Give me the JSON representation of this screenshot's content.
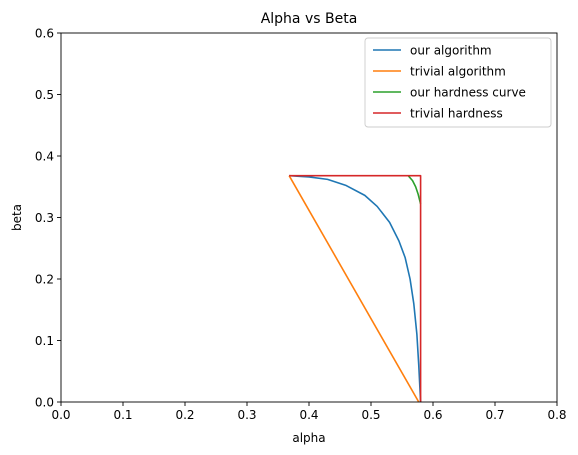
{
  "chart_data": {
    "type": "line",
    "title": "Alpha vs Beta",
    "xlabel": "alpha",
    "ylabel": "beta",
    "xlim": [
      0,
      0.8
    ],
    "ylim": [
      0,
      0.6
    ],
    "x_ticks": [
      "0.0",
      "0.1",
      "0.2",
      "0.3",
      "0.4",
      "0.5",
      "0.6",
      "0.7",
      "0.8"
    ],
    "y_ticks": [
      "0.0",
      "0.1",
      "0.2",
      "0.3",
      "0.4",
      "0.5",
      "0.6"
    ],
    "grid": false,
    "legend_position": "top-right",
    "series": [
      {
        "name": "our algorithm",
        "color": "#1f77b4",
        "points": [
          [
            0.368,
            0.368
          ],
          [
            0.4,
            0.366
          ],
          [
            0.43,
            0.362
          ],
          [
            0.46,
            0.352
          ],
          [
            0.49,
            0.336
          ],
          [
            0.51,
            0.318
          ],
          [
            0.53,
            0.292
          ],
          [
            0.545,
            0.262
          ],
          [
            0.555,
            0.235
          ],
          [
            0.563,
            0.2
          ],
          [
            0.569,
            0.16
          ],
          [
            0.574,
            0.11
          ],
          [
            0.577,
            0.06
          ],
          [
            0.579,
            0.02
          ],
          [
            0.58,
            0.0
          ]
        ]
      },
      {
        "name": "trivial algorithm",
        "color": "#ff7f0e",
        "points": [
          [
            0.368,
            0.368
          ],
          [
            0.577,
            0.0
          ]
        ]
      },
      {
        "name": "our hardness curve",
        "color": "#2ca02c",
        "points": [
          [
            0.56,
            0.368
          ],
          [
            0.567,
            0.36
          ],
          [
            0.572,
            0.35
          ],
          [
            0.576,
            0.338
          ],
          [
            0.58,
            0.322
          ]
        ]
      },
      {
        "name": "trivial hardness",
        "color": "#d62728",
        "points": [
          [
            0.368,
            0.368
          ],
          [
            0.58,
            0.368
          ],
          [
            0.58,
            0.0
          ]
        ]
      }
    ]
  }
}
